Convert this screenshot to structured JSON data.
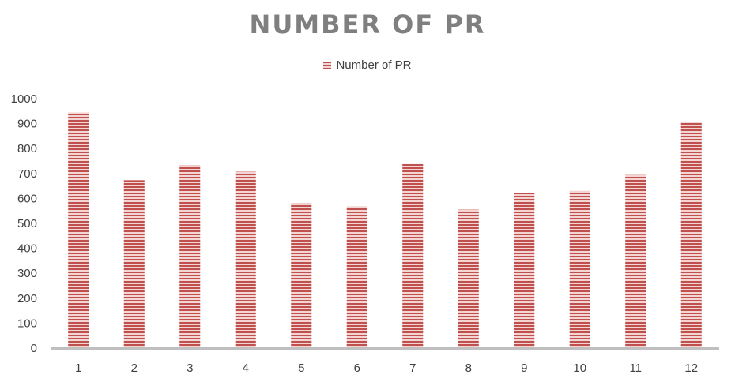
{
  "chart_data": {
    "type": "bar",
    "title": "NUMBER OF PR",
    "xlabel": "",
    "ylabel": "",
    "categories": [
      "1",
      "2",
      "3",
      "4",
      "5",
      "6",
      "7",
      "8",
      "9",
      "10",
      "11",
      "12"
    ],
    "series": [
      {
        "name": "Number of PR",
        "values": [
          945,
          673,
          732,
          707,
          580,
          567,
          738,
          555,
          623,
          630,
          694,
          908
        ]
      }
    ],
    "ylim": [
      0,
      1000
    ],
    "yticks": [
      "0",
      "100",
      "200",
      "300",
      "400",
      "500",
      "600",
      "700",
      "800",
      "900",
      "1000"
    ],
    "grid": false,
    "legend_position": "top",
    "bar_color": "#c0504d",
    "bar_pattern": "horizontal-stripes",
    "axis_color": "#bfbfbf",
    "title_color": "#7f7f7f"
  }
}
